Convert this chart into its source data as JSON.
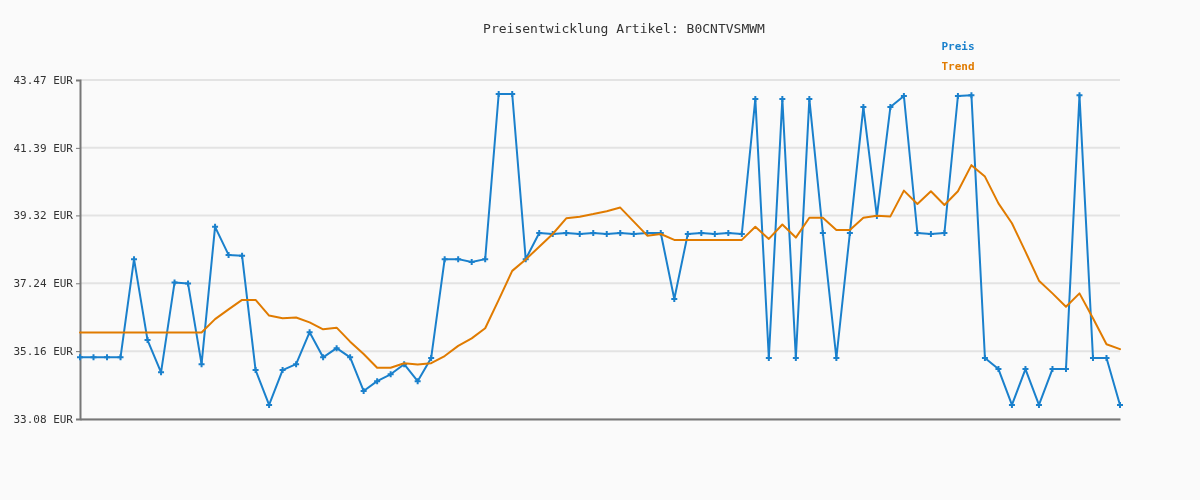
{
  "chart_data": {
    "type": "line",
    "title": "Preisentwicklung Artikel: B0CNTVSMWM",
    "categories": [
      null,
      null,
      null,
      null,
      null,
      null,
      null,
      null,
      null,
      null,
      null,
      null,
      null,
      null,
      null,
      null,
      null,
      null,
      null,
      null,
      null,
      null,
      null,
      null,
      null,
      null,
      null,
      null,
      null,
      null,
      null,
      null,
      null,
      null,
      null,
      null,
      null,
      null,
      null,
      null,
      null,
      null,
      null,
      null,
      null,
      null,
      null,
      null,
      null,
      null,
      null,
      null,
      null,
      null,
      null,
      null,
      null,
      null,
      null,
      null,
      null,
      null,
      null,
      null,
      null,
      null,
      null,
      null,
      null,
      null,
      null,
      null,
      null,
      null,
      null,
      null,
      null,
      null
    ],
    "series": [
      {
        "name": "Preis",
        "color": "#1a80cc",
        "marker": "cross",
        "values": [
          34.97,
          34.97,
          34.97,
          34.97,
          37.98,
          35.5,
          34.51,
          37.26,
          37.23,
          34.76,
          38.97,
          38.11,
          38.08,
          34.58,
          33.51,
          34.58,
          34.76,
          35.74,
          34.97,
          35.25,
          34.97,
          33.94,
          34.24,
          34.45,
          34.76,
          34.24,
          34.95,
          37.98,
          37.98,
          37.89,
          37.98,
          43.04,
          43.04,
          37.98,
          38.78,
          38.75,
          38.78,
          38.75,
          38.78,
          38.75,
          38.78,
          38.75,
          38.78,
          38.78,
          36.76,
          38.75,
          38.78,
          38.75,
          38.78,
          38.75,
          42.89,
          34.95,
          42.89,
          34.95,
          42.89,
          38.78,
          34.95,
          38.78,
          42.64,
          39.3,
          42.64,
          42.98,
          38.78,
          38.75,
          38.78,
          42.98,
          43.0,
          34.95,
          34.61,
          33.51,
          34.61,
          33.51,
          34.61,
          34.61,
          43.0,
          34.95,
          34.95,
          33.51
        ]
      },
      {
        "name": "Trend",
        "color": "#e07b00",
        "marker": "none",
        "values": [
          35.73,
          35.73,
          35.73,
          35.73,
          35.73,
          35.73,
          35.73,
          35.73,
          35.73,
          35.73,
          36.14,
          36.44,
          36.73,
          36.73,
          36.25,
          36.17,
          36.19,
          36.04,
          35.83,
          35.88,
          35.45,
          35.07,
          34.65,
          34.65,
          34.79,
          34.75,
          34.79,
          35.01,
          35.32,
          35.55,
          35.86,
          36.73,
          37.62,
          37.97,
          38.36,
          38.75,
          39.23,
          39.28,
          39.36,
          39.45,
          39.56,
          39.13,
          38.7,
          38.75,
          38.57,
          38.57,
          38.57,
          38.57,
          38.57,
          38.57,
          38.97,
          38.6,
          39.04,
          38.64,
          39.25,
          39.25,
          38.87,
          38.87,
          39.25,
          39.31,
          39.29,
          40.08,
          39.67,
          40.06,
          39.64,
          40.06,
          40.86,
          40.51,
          39.69,
          39.08,
          38.21,
          37.32,
          36.93,
          36.52,
          36.93,
          36.17,
          35.37,
          35.22
        ]
      }
    ],
    "ylim": [
      33.08,
      43.47
    ],
    "yticks": [
      {
        "value": 33.08,
        "label": "33.08 EUR"
      },
      {
        "value": 35.16,
        "label": "35.16 EUR"
      },
      {
        "value": 37.24,
        "label": "37.24 EUR"
      },
      {
        "value": 39.32,
        "label": "39.32 EUR"
      },
      {
        "value": 41.39,
        "label": "41.39 EUR"
      },
      {
        "value": 43.47,
        "label": "43.47 EUR"
      }
    ],
    "grid": "y",
    "legend": "top right",
    "line_style": "solid"
  }
}
